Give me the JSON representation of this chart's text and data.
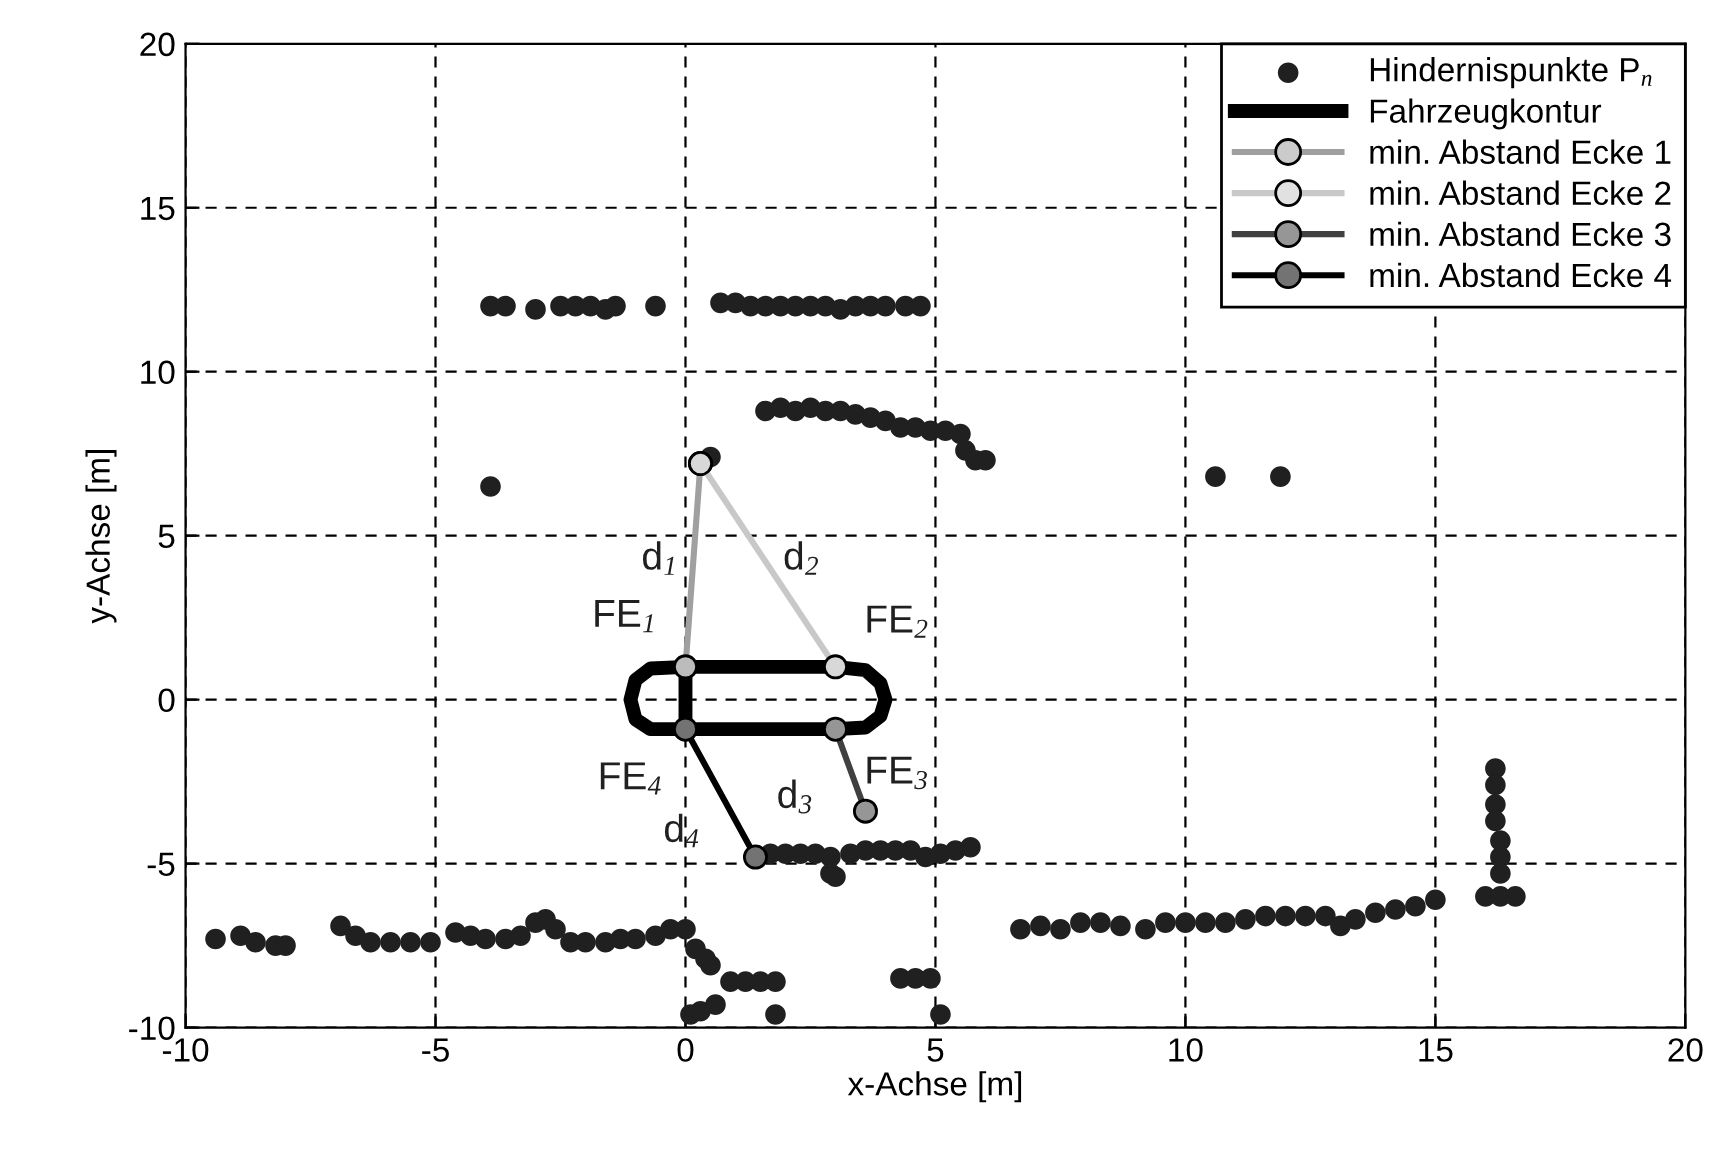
{
  "chart_data": {
    "type": "scatter",
    "xlabel": "x-Achse [m]",
    "ylabel": "y-Achse [m]",
    "xlim": [
      -10,
      20
    ],
    "ylim": [
      -10,
      20
    ],
    "xticks": [
      -10,
      -5,
      0,
      5,
      10,
      15,
      20
    ],
    "yticks": [
      -10,
      -5,
      0,
      5,
      10,
      15,
      20
    ],
    "grid": true,
    "legend": "top right",
    "series": [
      {
        "name": "Hindernispunkte P$_{n}$",
        "marker": "circle",
        "color": "#202020",
        "x": [
          -3.9,
          -3.6,
          -3.0,
          -2.5,
          -2.2,
          -1.9,
          -1.6,
          -1.4,
          -0.6,
          0.7,
          1.0,
          1.3,
          1.6,
          1.9,
          2.2,
          2.5,
          2.8,
          3.1,
          3.4,
          3.7,
          4.0,
          4.4,
          4.7,
          -3.9,
          0.5,
          1.6,
          1.9,
          2.2,
          2.5,
          2.8,
          3.1,
          3.4,
          3.7,
          4.0,
          4.3,
          4.6,
          4.9,
          5.2,
          5.5,
          5.6,
          5.8,
          6.0,
          10.6,
          11.9,
          -9.4,
          -8.9,
          -8.6,
          -8.2,
          -8.0,
          -6.9,
          -6.6,
          -6.3,
          -5.9,
          -5.5,
          -5.1,
          -4.6,
          -4.3,
          -4.0,
          -3.6,
          -3.3,
          -3.0,
          -2.8,
          -2.6,
          -2.3,
          -2.0,
          -1.6,
          -1.3,
          -1.0,
          -0.6,
          -0.3,
          0.0,
          0.2,
          0.4,
          0.5,
          0.1,
          0.3,
          0.6,
          0.9,
          1.2,
          1.5,
          1.8,
          1.8,
          4.3,
          4.6,
          4.9,
          5.1,
          1.7,
          2.0,
          2.3,
          2.6,
          2.9,
          2.9,
          3.0,
          3.3,
          3.6,
          3.9,
          4.2,
          4.5,
          4.8,
          5.1,
          5.4,
          5.7,
          6.7,
          7.1,
          7.5,
          7.9,
          8.3,
          8.7,
          9.2,
          9.6,
          10.0,
          10.4,
          10.8,
          11.2,
          11.6,
          12.0,
          12.4,
          12.8,
          13.1,
          13.4,
          13.8,
          14.2,
          14.6,
          15.0,
          16.2,
          16.2,
          16.2,
          16.2,
          16.3,
          16.3,
          16.3,
          16.0,
          16.3,
          16.6
        ],
        "values": [
          12.0,
          12.0,
          11.9,
          12.0,
          12.0,
          12.0,
          11.9,
          12.0,
          12.0,
          12.1,
          12.1,
          12.0,
          12.0,
          12.0,
          12.0,
          12.0,
          12.0,
          11.9,
          12.0,
          12.0,
          12.0,
          12.0,
          12.0,
          6.5,
          7.4,
          8.8,
          8.9,
          8.8,
          8.9,
          8.8,
          8.8,
          8.7,
          8.6,
          8.5,
          8.3,
          8.3,
          8.2,
          8.2,
          8.1,
          7.6,
          7.3,
          7.3,
          6.8,
          6.8,
          -7.3,
          -7.2,
          -7.4,
          -7.5,
          -7.5,
          -6.9,
          -7.2,
          -7.4,
          -7.4,
          -7.4,
          -7.4,
          -7.1,
          -7.2,
          -7.3,
          -7.3,
          -7.2,
          -6.8,
          -6.7,
          -7.0,
          -7.4,
          -7.4,
          -7.4,
          -7.3,
          -7.3,
          -7.2,
          -7.0,
          -7.0,
          -7.6,
          -7.9,
          -8.1,
          -9.6,
          -9.5,
          -9.3,
          -8.6,
          -8.6,
          -8.6,
          -8.6,
          -9.6,
          -8.5,
          -8.5,
          -8.5,
          -9.6,
          -4.7,
          -4.7,
          -4.7,
          -4.7,
          -4.8,
          -5.3,
          -5.4,
          -4.7,
          -4.6,
          -4.6,
          -4.6,
          -4.6,
          -4.8,
          -4.7,
          -4.6,
          -4.5,
          -7.0,
          -6.9,
          -7.0,
          -6.8,
          -6.8,
          -6.9,
          -7.0,
          -6.8,
          -6.8,
          -6.8,
          -6.8,
          -6.7,
          -6.6,
          -6.6,
          -6.6,
          -6.6,
          -6.9,
          -6.7,
          -6.5,
          -6.4,
          -6.3,
          -6.1,
          -2.1,
          -2.6,
          -3.2,
          -3.7,
          -4.3,
          -4.8,
          -5.3,
          -6.0,
          -6.0,
          -6.0
        ]
      },
      {
        "name": "Fahrzeugkontur",
        "type": "line",
        "marker": "none",
        "color": "#000000",
        "x": [
          0,
          3,
          3.6,
          3.9,
          4.0,
          3.9,
          3.6,
          3,
          0,
          -0.7,
          -1.0,
          -1.1,
          -1.0,
          -0.7,
          0,
          0
        ],
        "values": [
          1.0,
          1.0,
          0.9,
          0.5,
          0,
          -0.5,
          -0.85,
          -0.9,
          -0.9,
          -0.9,
          -0.6,
          0,
          0.6,
          0.95,
          1.0,
          -0.9
        ]
      },
      {
        "name": "min. Abstand Ecke 1",
        "type": "line",
        "marker": "circle",
        "color": "#a0a0a0",
        "x": [
          0.3,
          0
        ],
        "values": [
          7.2,
          1.0
        ]
      },
      {
        "name": "min. Abstand Ecke 2",
        "type": "line",
        "marker": "circle",
        "color": "#c8c8c8",
        "x": [
          0.3,
          3
        ],
        "values": [
          7.2,
          1.0
        ]
      },
      {
        "name": "min. Abstand Ecke 3",
        "type": "line",
        "marker": "circle",
        "color": "#404040",
        "x": [
          3.6,
          3
        ],
        "values": [
          -3.4,
          -0.9
        ]
      },
      {
        "name": "min. Abstand Ecke 4",
        "type": "line",
        "marker": "circle",
        "color": "#000000",
        "x": [
          1.4,
          0
        ],
        "values": [
          -4.8,
          -0.9
        ]
      }
    ],
    "annotations": [
      {
        "text": "d$_{1}$",
        "x": 0.15,
        "y": 4.1
      },
      {
        "text": "d$_{2}$",
        "x": 1.65,
        "y": 4.1
      },
      {
        "text": "FE$_{1}$",
        "x": 0,
        "y": 1.0
      },
      {
        "text": "FE$_{2}$",
        "x": 3,
        "y": 1.0
      },
      {
        "text": "FE$_{4}$",
        "x": 0,
        "y": -0.9
      },
      {
        "text": "FE$_{3}$",
        "x": 3,
        "y": -0.9
      },
      {
        "text": "d$_{3}$",
        "x": 3.3,
        "y": -2.15
      },
      {
        "text": "d$_{4}$",
        "x": 0.7,
        "y": -2.85
      }
    ]
  }
}
